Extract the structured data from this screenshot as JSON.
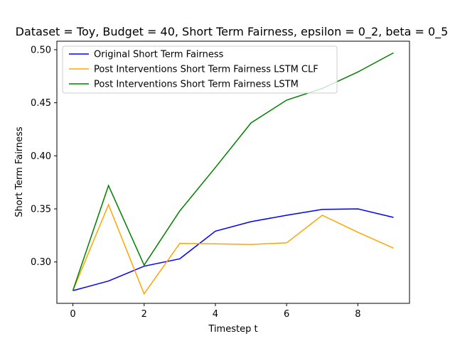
{
  "chart_data": {
    "type": "line",
    "title": "Dataset = Toy, Budget = 40, Short Term Fairness, epsilon = 0_2, beta = 0_5",
    "xlabel": "Timestep t",
    "ylabel": "Short Term Fairness",
    "xlim": [
      -0.45,
      9.45
    ],
    "ylim": [
      0.261,
      0.508
    ],
    "xticks": [
      0,
      2,
      4,
      6,
      8
    ],
    "yticks": [
      0.3,
      0.35,
      0.4,
      0.45,
      0.5
    ],
    "ytick_labels": [
      "0.30",
      "0.35",
      "0.40",
      "0.45",
      "0.50"
    ],
    "grid": false,
    "legend_position": "top-left",
    "x": [
      0,
      1,
      2,
      3,
      4,
      5,
      6,
      7,
      8,
      9
    ],
    "series": [
      {
        "name": "Original Short Term Fairness",
        "color": "#0000ff",
        "values": [
          0.273,
          0.282,
          0.296,
          0.303,
          0.329,
          0.338,
          0.344,
          0.3495,
          0.35,
          0.342
        ]
      },
      {
        "name": "Post Interventions Short Term Fairness LSTM CLF",
        "color": "#ffa500",
        "values": [
          0.273,
          0.354,
          0.27,
          0.3175,
          0.317,
          0.3165,
          0.318,
          0.344,
          0.328,
          0.313
        ]
      },
      {
        "name": "Post Interventions Short Term Fairness LSTM",
        "color": "#008000",
        "values": [
          0.273,
          0.372,
          0.297,
          0.348,
          0.389,
          0.431,
          0.4525,
          0.4635,
          0.479,
          0.497
        ]
      }
    ]
  }
}
